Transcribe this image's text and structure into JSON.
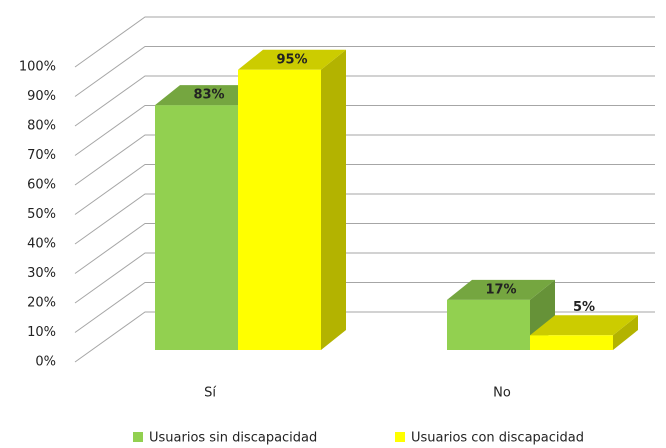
{
  "chart_data": {
    "type": "bar3d",
    "categories": [
      "Sí",
      "No"
    ],
    "series": [
      {
        "name": "Usuarios sin discapacidad",
        "color": "#92d050",
        "values": [
          83,
          17
        ],
        "value_labels": [
          "83%",
          "17%"
        ]
      },
      {
        "name": "Usuarios con discapacidad",
        "color": "#ffff00",
        "values": [
          95,
          5
        ],
        "value_labels": [
          "95%",
          "5%"
        ]
      }
    ],
    "ylim": [
      0,
      100
    ],
    "yticks": [
      {
        "value": 0,
        "label": "0%"
      },
      {
        "value": 10,
        "label": "10%"
      },
      {
        "value": 20,
        "label": "20%"
      },
      {
        "value": 30,
        "label": "30%"
      },
      {
        "value": 40,
        "label": "40%"
      },
      {
        "value": 50,
        "label": "50%"
      },
      {
        "value": 60,
        "label": "60%"
      },
      {
        "value": 70,
        "label": "70%"
      },
      {
        "value": 80,
        "label": "80%"
      },
      {
        "value": 90,
        "label": "90%"
      },
      {
        "value": 100,
        "label": "100%"
      }
    ],
    "grid": true,
    "legend": "bottom"
  }
}
